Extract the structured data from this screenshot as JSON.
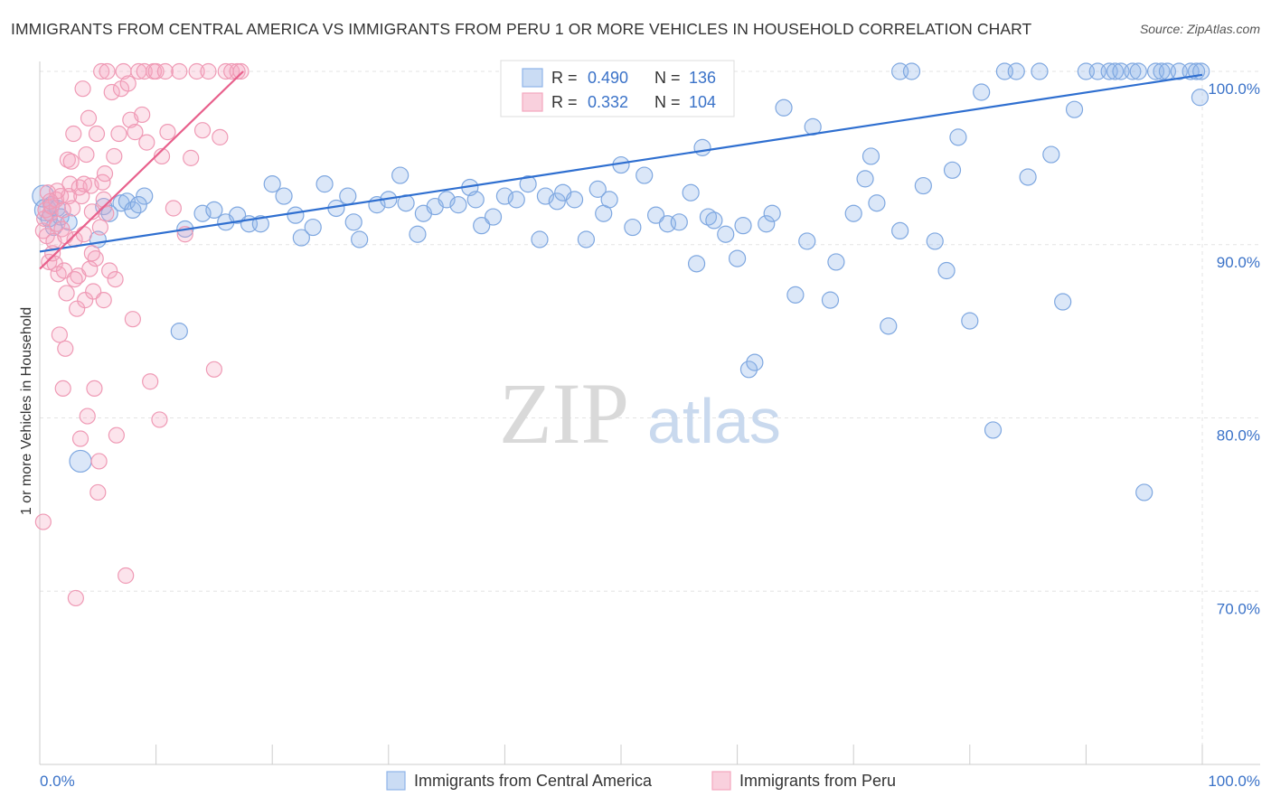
{
  "title": "IMMIGRANTS FROM CENTRAL AMERICA VS IMMIGRANTS FROM PERU 1 OR MORE VEHICLES IN HOUSEHOLD CORRELATION CHART",
  "source": "Source: ZipAtlas.com",
  "watermark": {
    "zip": "ZIP",
    "atlas": "atlas"
  },
  "stats_legend": {
    "r_label": "R =",
    "n_label": "N =",
    "rows": [
      {
        "r": "0.490",
        "n": "136",
        "color": "#8fb4e8"
      },
      {
        "r": "0.332",
        "n": "104",
        "color": "#f4a7bf"
      }
    ]
  },
  "bottom_legend": [
    {
      "label": "Immigrants from Central America",
      "color": "#8fb4e8"
    },
    {
      "label": "Immigrants from Peru",
      "color": "#f4a7bf"
    }
  ],
  "chart_data": {
    "type": "scatter",
    "title": "IMMIGRANTS FROM CENTRAL AMERICA VS IMMIGRANTS FROM PERU 1 OR MORE VEHICLES IN HOUSEHOLD CORRELATION CHART",
    "xlabel": "",
    "ylabel": "1 or more Vehicles in Household",
    "xlim": [
      0,
      100
    ],
    "ylim": [
      60,
      100
    ],
    "y_ticks": [
      {
        "v": 70,
        "label": "70.0%"
      },
      {
        "v": 80,
        "label": "80.0%"
      },
      {
        "v": 90,
        "label": "90.0%"
      },
      {
        "v": 100,
        "label": "100.0%"
      }
    ],
    "x_tick_labels": [
      {
        "v": 0,
        "label": "0.0%"
      },
      {
        "v": 100,
        "label": "100.0%"
      }
    ],
    "grid": true,
    "legend_position": "bottom",
    "series": [
      {
        "name": "Immigrants from Central America",
        "color": "#6f9ee0",
        "trend": {
          "x": [
            0,
            100
          ],
          "y": [
            89.6,
            99.8
          ]
        },
        "points": [
          [
            0.3,
            92.8
          ],
          [
            0.5,
            92.0
          ],
          [
            0.8,
            91.5
          ],
          [
            1.0,
            92.3
          ],
          [
            1.2,
            91.0
          ],
          [
            1.5,
            92.1
          ],
          [
            1.8,
            91.6
          ],
          [
            2.5,
            91.3
          ],
          [
            3.5,
            77.5
          ],
          [
            5,
            90.3
          ],
          [
            5.5,
            92.2
          ],
          [
            6,
            91.8
          ],
          [
            7,
            92.4
          ],
          [
            7.5,
            92.5
          ],
          [
            8,
            92.0
          ],
          [
            9,
            92.8
          ],
          [
            8.5,
            92.3
          ],
          [
            12,
            85.0
          ],
          [
            12.5,
            90.9
          ],
          [
            14,
            91.8
          ],
          [
            15,
            92.0
          ],
          [
            16,
            91.3
          ],
          [
            17,
            91.7
          ],
          [
            18,
            91.2
          ],
          [
            19,
            91.2
          ],
          [
            20,
            93.5
          ],
          [
            21,
            92.8
          ],
          [
            22,
            91.7
          ],
          [
            22.5,
            90.4
          ],
          [
            23.5,
            91.0
          ],
          [
            24.5,
            93.5
          ],
          [
            25.5,
            92.1
          ],
          [
            26.5,
            92.8
          ],
          [
            27,
            91.3
          ],
          [
            27.5,
            90.3
          ],
          [
            29,
            92.3
          ],
          [
            30,
            92.6
          ],
          [
            31,
            94.0
          ],
          [
            31.5,
            92.4
          ],
          [
            32.5,
            90.6
          ],
          [
            33,
            91.8
          ],
          [
            34,
            92.2
          ],
          [
            35,
            92.6
          ],
          [
            36,
            92.3
          ],
          [
            37,
            93.3
          ],
          [
            37.5,
            92.6
          ],
          [
            38,
            91.1
          ],
          [
            39,
            91.6
          ],
          [
            40,
            92.8
          ],
          [
            41,
            92.6
          ],
          [
            42,
            93.5
          ],
          [
            43,
            90.3
          ],
          [
            43.5,
            92.8
          ],
          [
            44.5,
            92.5
          ],
          [
            45,
            93.0
          ],
          [
            46,
            92.6
          ],
          [
            47,
            90.3
          ],
          [
            48,
            93.2
          ],
          [
            48.5,
            91.8
          ],
          [
            49,
            92.6
          ],
          [
            50,
            94.6
          ],
          [
            51,
            91.0
          ],
          [
            52,
            94.0
          ],
          [
            53,
            91.7
          ],
          [
            54,
            91.2
          ],
          [
            55,
            91.3
          ],
          [
            56,
            93.0
          ],
          [
            56.5,
            88.9
          ],
          [
            57,
            95.6
          ],
          [
            57.5,
            91.6
          ],
          [
            58,
            91.4
          ],
          [
            59,
            90.6
          ],
          [
            60,
            89.2
          ],
          [
            60.5,
            91.1
          ],
          [
            61,
            82.8
          ],
          [
            61.5,
            83.2
          ],
          [
            62.5,
            91.2
          ],
          [
            63,
            91.8
          ],
          [
            64,
            97.9
          ],
          [
            65,
            87.1
          ],
          [
            66,
            90.2
          ],
          [
            66.5,
            96.8
          ],
          [
            68,
            86.8
          ],
          [
            68.5,
            89.0
          ],
          [
            70,
            91.8
          ],
          [
            71,
            93.8
          ],
          [
            71.5,
            95.1
          ],
          [
            72,
            92.4
          ],
          [
            73,
            85.3
          ],
          [
            74,
            90.8
          ],
          [
            74,
            100
          ],
          [
            75,
            100
          ],
          [
            76,
            93.4
          ],
          [
            77,
            90.2
          ],
          [
            78,
            88.5
          ],
          [
            78.5,
            94.3
          ],
          [
            79,
            96.2
          ],
          [
            80,
            85.6
          ],
          [
            81,
            98.8
          ],
          [
            82,
            79.3
          ],
          [
            83,
            100
          ],
          [
            84,
            100
          ],
          [
            85,
            93.9
          ],
          [
            86,
            100
          ],
          [
            87,
            95.2
          ],
          [
            88,
            86.7
          ],
          [
            89,
            97.8
          ],
          [
            90,
            100
          ],
          [
            91,
            100
          ],
          [
            92,
            100
          ],
          [
            92.5,
            100
          ],
          [
            93,
            100
          ],
          [
            94,
            100
          ],
          [
            94.5,
            100
          ],
          [
            95,
            75.7
          ],
          [
            96,
            100
          ],
          [
            96.5,
            100
          ],
          [
            97,
            100
          ],
          [
            98,
            100
          ],
          [
            99,
            100
          ],
          [
            99.5,
            100
          ],
          [
            99.8,
            98.5
          ],
          [
            99.9,
            100
          ]
        ]
      },
      {
        "name": "Immigrants from Peru",
        "color": "#ef85a7",
        "trend": {
          "x": [
            0,
            17.5
          ],
          "y": [
            88.6,
            100
          ]
        },
        "points": [
          [
            0.3,
            74.0
          ],
          [
            0.3,
            90.8
          ],
          [
            0.4,
            91.5
          ],
          [
            0.5,
            92.0
          ],
          [
            0.6,
            90.5
          ],
          [
            0.7,
            93.0
          ],
          [
            0.8,
            89.0
          ],
          [
            0.9,
            91.8
          ],
          [
            1.0,
            92.2
          ],
          [
            1.1,
            89.5
          ],
          [
            1.2,
            90.2
          ],
          [
            1.3,
            88.9
          ],
          [
            1.4,
            92.6
          ],
          [
            1.5,
            91.2
          ],
          [
            1.6,
            88.3
          ],
          [
            1.7,
            84.8
          ],
          [
            1.8,
            92.8
          ],
          [
            1.9,
            90.9
          ],
          [
            2.0,
            81.7
          ],
          [
            2.1,
            88.5
          ],
          [
            2.2,
            84.0
          ],
          [
            2.3,
            87.2
          ],
          [
            2.4,
            94.9
          ],
          [
            2.5,
            92.8
          ],
          [
            2.6,
            93.5
          ],
          [
            2.7,
            94.8
          ],
          [
            2.8,
            92.1
          ],
          [
            2.9,
            96.4
          ],
          [
            3.0,
            90.3
          ],
          [
            3.1,
            69.6
          ],
          [
            3.2,
            86.3
          ],
          [
            3.3,
            88.2
          ],
          [
            3.4,
            93.3
          ],
          [
            3.5,
            78.8
          ],
          [
            3.6,
            92.8
          ],
          [
            3.7,
            99.0
          ],
          [
            3.8,
            90.6
          ],
          [
            3.9,
            86.8
          ],
          [
            4.0,
            95.2
          ],
          [
            4.1,
            80.1
          ],
          [
            4.2,
            97.3
          ],
          [
            4.3,
            88.6
          ],
          [
            4.4,
            93.4
          ],
          [
            4.5,
            91.9
          ],
          [
            4.6,
            87.3
          ],
          [
            4.7,
            81.7
          ],
          [
            4.8,
            89.2
          ],
          [
            4.9,
            96.4
          ],
          [
            5.0,
            75.7
          ],
          [
            5.1,
            77.5
          ],
          [
            5.2,
            91.0
          ],
          [
            5.3,
            100
          ],
          [
            5.4,
            93.6
          ],
          [
            5.5,
            86.8
          ],
          [
            5.6,
            94.1
          ],
          [
            5.7,
            91.8
          ],
          [
            5.8,
            100
          ],
          [
            6.0,
            88.5
          ],
          [
            6.2,
            98.8
          ],
          [
            6.4,
            95.1
          ],
          [
            6.6,
            79.0
          ],
          [
            6.8,
            96.4
          ],
          [
            7.0,
            99.0
          ],
          [
            7.2,
            100
          ],
          [
            7.4,
            70.9
          ],
          [
            7.6,
            99.3
          ],
          [
            7.8,
            97.2
          ],
          [
            8.0,
            85.7
          ],
          [
            8.2,
            96.5
          ],
          [
            8.5,
            100
          ],
          [
            8.8,
            97.5
          ],
          [
            9.0,
            100
          ],
          [
            9.2,
            95.9
          ],
          [
            9.5,
            82.1
          ],
          [
            9.8,
            100
          ],
          [
            10.0,
            100
          ],
          [
            10.3,
            79.9
          ],
          [
            10.5,
            95.1
          ],
          [
            10.8,
            100
          ],
          [
            11.0,
            96.5
          ],
          [
            11.5,
            92.1
          ],
          [
            12.0,
            100
          ],
          [
            12.5,
            90.6
          ],
          [
            13.0,
            95.0
          ],
          [
            13.5,
            100
          ],
          [
            14.0,
            96.6
          ],
          [
            14.5,
            100
          ],
          [
            15.0,
            82.8
          ],
          [
            15.5,
            96.2
          ],
          [
            16.0,
            100
          ],
          [
            16.5,
            100
          ],
          [
            17.0,
            100
          ],
          [
            17.3,
            100
          ],
          [
            3.0,
            88.0
          ],
          [
            2.2,
            90.5
          ],
          [
            1.5,
            93.1
          ],
          [
            0.9,
            92.5
          ],
          [
            4.5,
            89.5
          ],
          [
            6.5,
            88.0
          ],
          [
            3.8,
            93.5
          ],
          [
            2.0,
            92.0
          ],
          [
            5.5,
            92.6
          ]
        ]
      }
    ]
  }
}
